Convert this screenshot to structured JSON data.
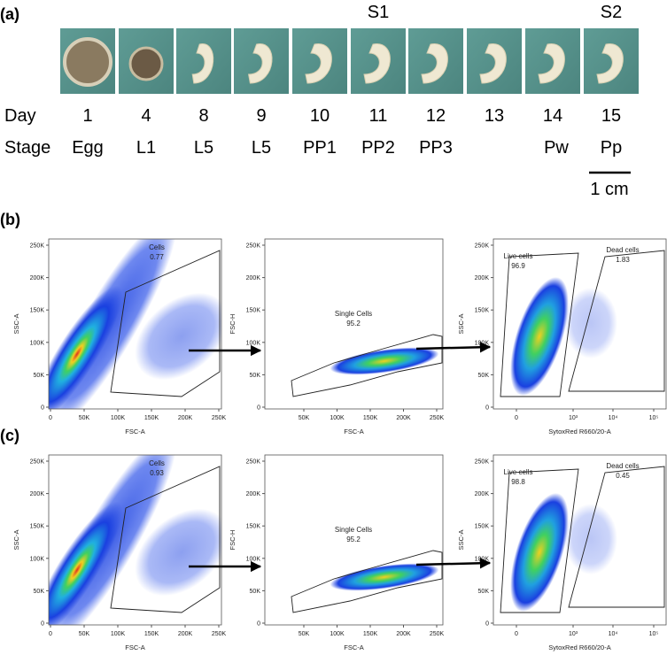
{
  "panel_a": {
    "label": "(a)",
    "groups": [
      "S1",
      "S2"
    ],
    "row_labels": [
      "Day",
      "Stage"
    ],
    "days": [
      "1",
      "4",
      "8",
      "9",
      "10",
      "11",
      "12",
      "13",
      "14",
      "15"
    ],
    "stages": [
      "Egg",
      "L1",
      "L5",
      "L5",
      "PP1",
      "PP2",
      "PP3",
      null,
      "Pw",
      "Pp"
    ],
    "scale_bar": "1 cm"
  },
  "panels": [
    {
      "label": "(b)",
      "plots": [
        {
          "x_label": "FSC-A",
          "y_label": "SSC-A",
          "xticks": [
            "0",
            "50K",
            "100K",
            "150K",
            "200K",
            "250K"
          ],
          "yticks": [
            "0",
            "50K",
            "100K",
            "150K",
            "200K",
            "250K"
          ],
          "gates": [
            {
              "name": "Cells",
              "value": 0.77
            }
          ]
        },
        {
          "x_label": "FSC-A",
          "y_label": "FSC-H",
          "xticks": [
            "50K",
            "100K",
            "150K",
            "200K",
            "250K"
          ],
          "yticks": [
            "0",
            "50K",
            "100K",
            "150K",
            "200K",
            "250K"
          ],
          "gates": [
            {
              "name": "Single Cells",
              "value": 95.2
            }
          ]
        },
        {
          "x_label": "SytoxRed R660/20-A",
          "y_label": "SSC-A",
          "xticks": [
            "0",
            "10³",
            "10⁴",
            "10⁵"
          ],
          "yticks": [
            "0",
            "50K",
            "100K",
            "150K",
            "200K",
            "250K"
          ],
          "gates": [
            {
              "name": "Live cells",
              "value": 96.9
            },
            {
              "name": "Dead cells",
              "value": 1.83
            }
          ]
        }
      ]
    },
    {
      "label": "(c)",
      "plots": [
        {
          "x_label": "FSC-A",
          "y_label": "SSC-A",
          "xticks": [
            "0",
            "50K",
            "100K",
            "150K",
            "200K",
            "250K"
          ],
          "yticks": [
            "0",
            "50K",
            "100K",
            "150K",
            "200K",
            "250K"
          ],
          "gates": [
            {
              "name": "Cells",
              "value": 0.93
            }
          ]
        },
        {
          "x_label": "FSC-A",
          "y_label": "FSC-H",
          "xticks": [
            "50K",
            "100K",
            "150K",
            "200K",
            "250K"
          ],
          "yticks": [
            "0",
            "50K",
            "100K",
            "150K",
            "200K",
            "250K"
          ],
          "gates": [
            {
              "name": "Single Cells",
              "value": 95.2
            }
          ]
        },
        {
          "x_label": "SytoxRed R660/20-A",
          "y_label": "SSC-A",
          "xticks": [
            "0",
            "10³",
            "10⁴",
            "10⁵"
          ],
          "yticks": [
            "0",
            "50K",
            "100K",
            "150K",
            "200K",
            "250K"
          ],
          "gates": [
            {
              "name": "Live cells",
              "value": 98.8
            },
            {
              "name": "Dead cells",
              "value": 0.45
            }
          ]
        }
      ]
    }
  ]
}
